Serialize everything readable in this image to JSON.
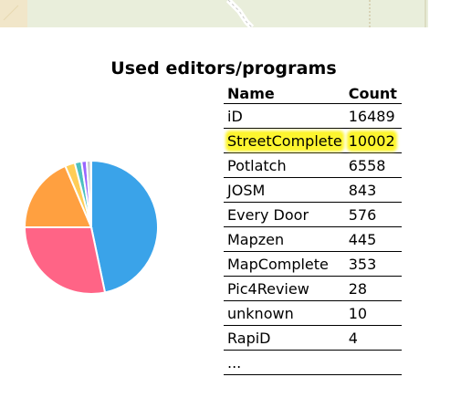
{
  "page": {
    "title": "Used editors/programs"
  },
  "colors": {
    "highlight": "#fdf52f",
    "map_background": "#e9eedb"
  },
  "table": {
    "headers": {
      "name": "Name",
      "count": "Count"
    },
    "rows": [
      {
        "name": "iD",
        "count": "16489",
        "highlighted": false
      },
      {
        "name": "StreetComplete",
        "count": "10002",
        "highlighted": true
      },
      {
        "name": "Potlatch",
        "count": "6558",
        "highlighted": false
      },
      {
        "name": "JOSM",
        "count": "843",
        "highlighted": false
      },
      {
        "name": "Every Door",
        "count": "576",
        "highlighted": false
      },
      {
        "name": "Mapzen",
        "count": "445",
        "highlighted": false
      },
      {
        "name": "MapComplete",
        "count": "353",
        "highlighted": false
      },
      {
        "name": "Pic4Review",
        "count": "28",
        "highlighted": false
      },
      {
        "name": "unknown",
        "count": "10",
        "highlighted": false
      },
      {
        "name": "RapiD",
        "count": "4",
        "highlighted": false
      }
    ],
    "more": "..."
  },
  "chart_data": {
    "type": "pie",
    "categories": [
      "iD",
      "StreetComplete",
      "Potlatch",
      "JOSM",
      "Every Door",
      "Mapzen",
      "MapComplete",
      "Pic4Review",
      "unknown",
      "RapiD"
    ],
    "values": [
      16489,
      10002,
      6558,
      843,
      576,
      445,
      353,
      28,
      10,
      4
    ],
    "colors": [
      "#3aa3e9",
      "#ff6486",
      "#ffa040",
      "#ffcd56",
      "#4bc0c0",
      "#9966ff",
      "#c9cbcf",
      "#3aa3e9",
      "#ff6486",
      "#ffa040"
    ],
    "start_angle_deg": 0,
    "direction": "clockwise"
  }
}
